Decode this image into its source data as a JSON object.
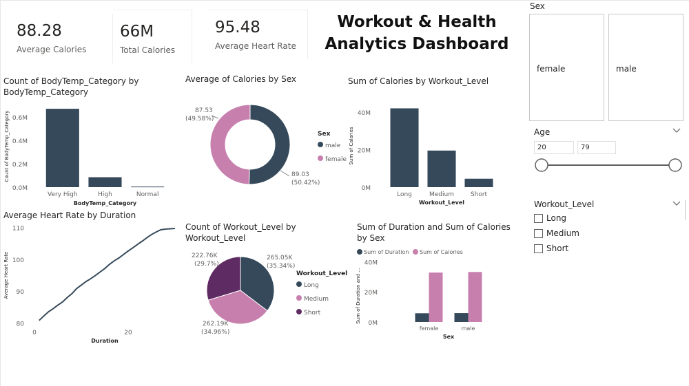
{
  "dashboard_title_line1": "Workout & Health",
  "dashboard_title_line2": "Analytics Dashboard",
  "cards": [
    {
      "value": "88.28",
      "label": "Average Calories"
    },
    {
      "value": "66M",
      "label": "Total Calories"
    },
    {
      "value": "95.48",
      "label": "Average Heart Rate"
    }
  ],
  "slicers": {
    "sex": {
      "title": "Sex",
      "options": [
        "female",
        "male"
      ]
    },
    "age": {
      "title": "Age",
      "min": "20",
      "max": "79",
      "range_min": 20,
      "range_max": 79,
      "selected_min": 20,
      "selected_max": 79
    },
    "workout_level": {
      "title": "Workout_Level",
      "options": [
        "Long",
        "Medium",
        "Short"
      ]
    }
  },
  "colors": {
    "dark": "#35495a",
    "pink": "#c77fae",
    "purple": "#5f2b63",
    "text": "#252423",
    "axis": "#605e5c",
    "gridline": "#e6e6e6"
  },
  "chart_data": [
    {
      "type": "bar",
      "title": "Count of BodyTemp_Category by BodyTemp_Category",
      "xlabel": "BodyTemp_Category",
      "ylabel": "Count of BodyTemp_Category",
      "categories": [
        "Very High",
        "High",
        "Normal"
      ],
      "values": [
        0.67,
        0.085,
        0.005
      ],
      "ylim": [
        0,
        0.7
      ],
      "yticks": [
        "0.0M",
        "0.2M",
        "0.4M",
        "0.6M"
      ]
    },
    {
      "type": "pie",
      "variant": "donut",
      "title": "Average of Calories by Sex",
      "legend_title": "Sex",
      "legend_position": "right",
      "slices": [
        {
          "name": "male",
          "value": 89.03,
          "label": "89.03",
          "pct": "(50.42%)"
        },
        {
          "name": "female",
          "value": 87.53,
          "label": "87.53",
          "pct": "(49.58%)"
        }
      ]
    },
    {
      "type": "bar",
      "title": "Sum of Calories by Workout_Level",
      "xlabel": "Workout_Level",
      "ylabel": "Sum of Calories",
      "categories": [
        "Long",
        "Medium",
        "Short"
      ],
      "values": [
        42,
        19.5,
        4.5
      ],
      "ylim": [
        0,
        44
      ],
      "yticks": [
        "0M",
        "20M",
        "40M"
      ]
    },
    {
      "type": "line",
      "title": "Average Heart Rate by Duration",
      "xlabel": "Duration",
      "ylabel": "Average Heart Rate",
      "x": [
        1,
        2,
        3,
        4,
        5,
        6,
        7,
        8,
        9,
        10,
        11,
        12,
        13,
        14,
        15,
        16,
        17,
        18,
        19,
        20,
        21,
        22,
        23,
        24,
        25,
        26,
        27,
        28,
        29,
        30
      ],
      "y": [
        80.8,
        82.2,
        83.5,
        84.5,
        85.6,
        86.6,
        88.0,
        89.2,
        90.8,
        91.9,
        93.0,
        93.9,
        94.9,
        96.0,
        97.1,
        98.4,
        99.5,
        100.4,
        101.5,
        102.6,
        103.6,
        104.7,
        105.7,
        106.8,
        107.8,
        108.6,
        109.3,
        109.5,
        109.6,
        109.7
      ],
      "xlim": [
        0,
        30
      ],
      "ylim": [
        79,
        111
      ],
      "xticks": [
        "0",
        "20"
      ],
      "yticks": [
        "80",
        "90",
        "100",
        "110"
      ]
    },
    {
      "type": "pie",
      "title": "Count of Workout_Level by Workout_Level",
      "legend_title": "Workout_Level",
      "legend_position": "right",
      "slices": [
        {
          "name": "Long",
          "value": 265.05,
          "label": "265.05K",
          "pct": "(35.34%)"
        },
        {
          "name": "Medium",
          "value": 262.19,
          "label": "262.19K",
          "pct": "(34.96%)"
        },
        {
          "name": "Short",
          "value": 222.76,
          "label": "222.76K",
          "pct": "(29.7%)"
        }
      ]
    },
    {
      "type": "bar",
      "title": "Sum of Duration and Sum of Calories by Sex",
      "xlabel": "Sex",
      "ylabel": "Sum of Duration and ...",
      "categories": [
        "female",
        "male"
      ],
      "series": [
        {
          "name": "Sum of Duration",
          "values": [
            5.8,
            5.9
          ]
        },
        {
          "name": "Sum of Calories",
          "values": [
            32.8,
            33.2
          ]
        }
      ],
      "ylim": [
        0,
        42
      ],
      "yticks": [
        "0M",
        "20M",
        "40M"
      ],
      "legend_position": "top-left"
    }
  ]
}
